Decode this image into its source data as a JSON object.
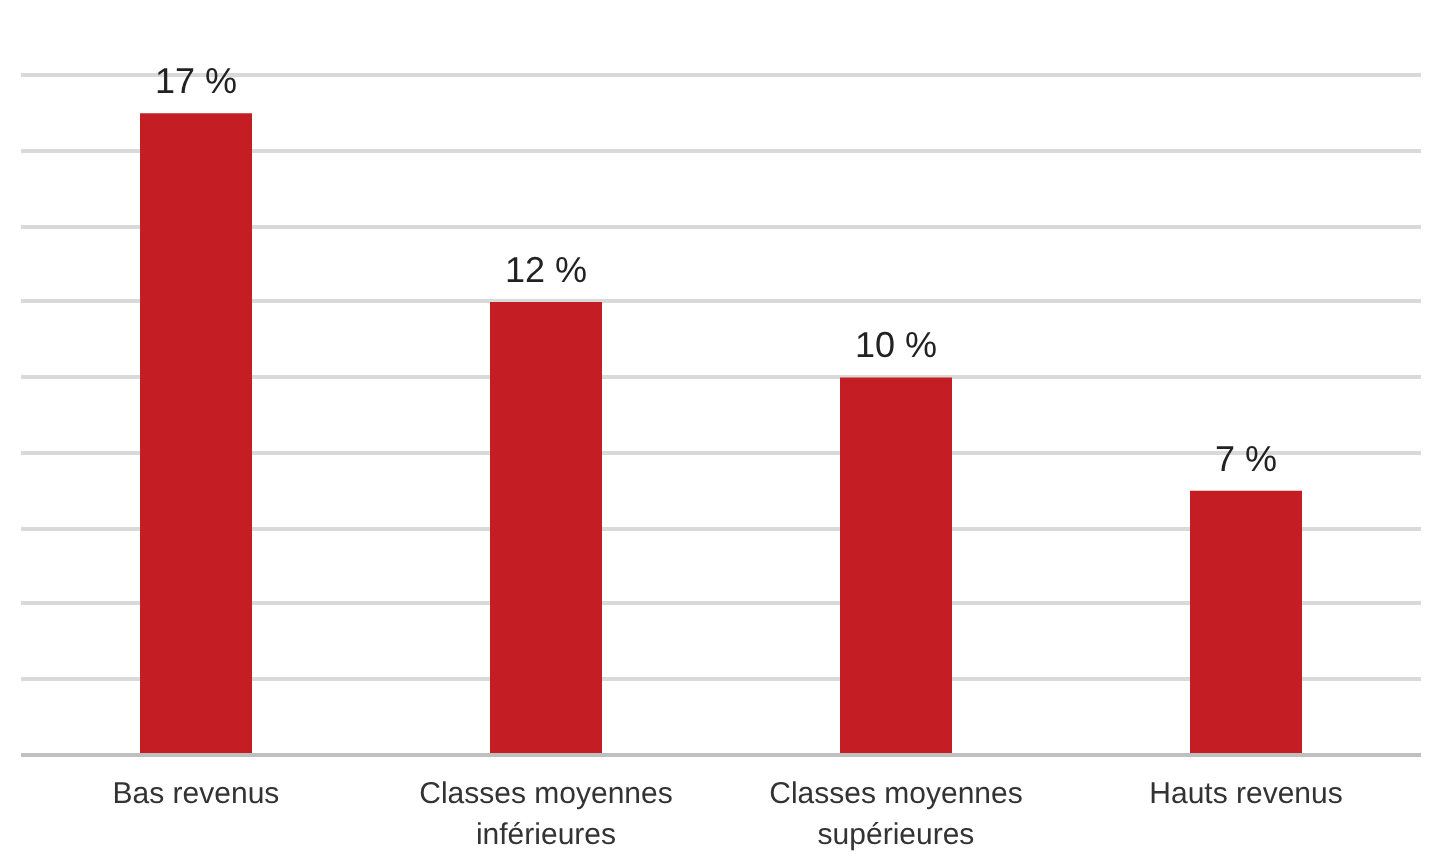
{
  "chart_data": {
    "type": "bar",
    "categories": [
      "Bas revenus",
      "Classes moyennes\ninférieures",
      "Classes moyennes\nsupérieures",
      "Hauts revenus"
    ],
    "values": [
      17,
      12,
      10,
      7
    ],
    "color": "#c41e24",
    "value_labels": [
      "17 %",
      "12 %",
      "10 %",
      "7 %"
    ],
    "ylim": [
      0,
      18
    ],
    "yticks": [
      {
        "value": 0,
        "label": null
      },
      {
        "value": 2,
        "label": null
      },
      {
        "value": 4,
        "label": null
      },
      {
        "value": 6,
        "label": null
      },
      {
        "value": 8,
        "label": null
      },
      {
        "value": 10,
        "label": null
      },
      {
        "value": 12,
        "label": null
      },
      {
        "value": 14,
        "label": null
      },
      {
        "value": 16,
        "label": null
      },
      {
        "value": 18,
        "label": null
      }
    ],
    "grid": "y",
    "tick_labels": "x"
  }
}
